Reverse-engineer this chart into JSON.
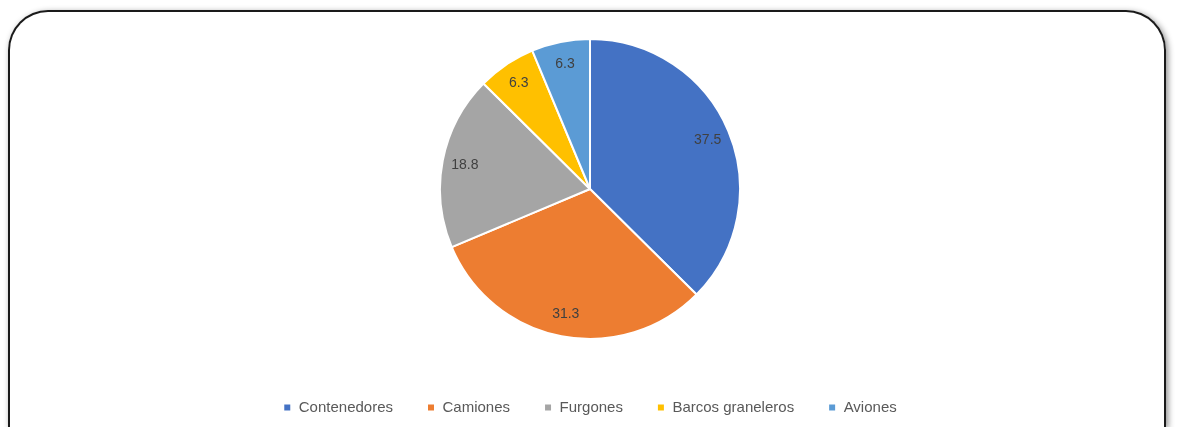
{
  "chart_data": {
    "type": "pie",
    "categories": [
      "Contenedores",
      "Camiones",
      "Furgones",
      "Barcos graneleros",
      "Aviones"
    ],
    "values": [
      37.5,
      31.3,
      18.8,
      6.3,
      6.3
    ],
    "colors": [
      "#4472c4",
      "#ed7d31",
      "#a5a5a5",
      "#ffc000",
      "#5b9bd5"
    ],
    "data_labels": true,
    "legend": "bottom"
  }
}
